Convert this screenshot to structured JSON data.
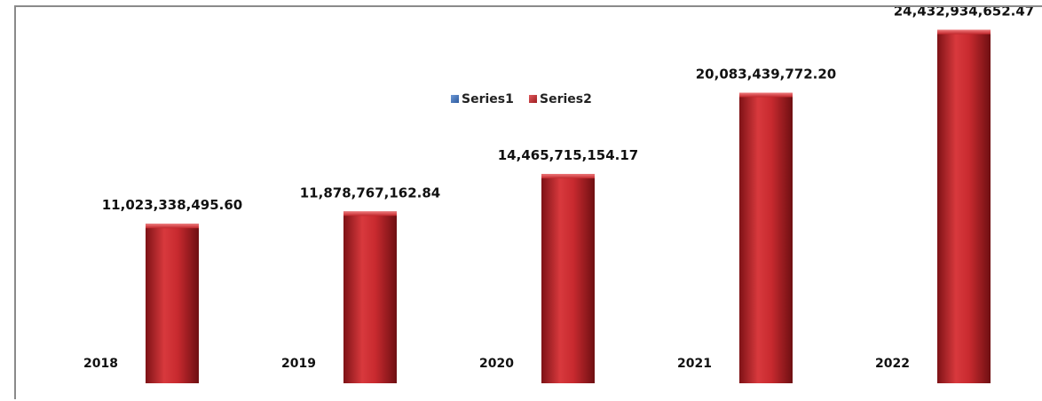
{
  "chart_data": {
    "type": "bar",
    "title": "",
    "xlabel": "",
    "ylabel": "",
    "categories": [
      "2018",
      "2019",
      "2020",
      "2021",
      "2022"
    ],
    "series": [
      {
        "name": "Series1",
        "color": "#3a6fb6",
        "values": [
          2018,
          2019,
          2020,
          2021,
          2022
        ]
      },
      {
        "name": "Series2",
        "color": "#c0262b",
        "values": [
          11023338495.6,
          11878767162.84,
          14465715154.17,
          20083439772.2,
          24432934652.47
        ],
        "labels": [
          "11,023,338,495.60",
          "11,878,767,162.84",
          "14,465,715,154.17",
          "20,083,439,772.20",
          "24,432,934,652.47"
        ]
      }
    ],
    "ylim": [
      0,
      26000000000
    ],
    "grid": false,
    "legend": "top-center"
  }
}
